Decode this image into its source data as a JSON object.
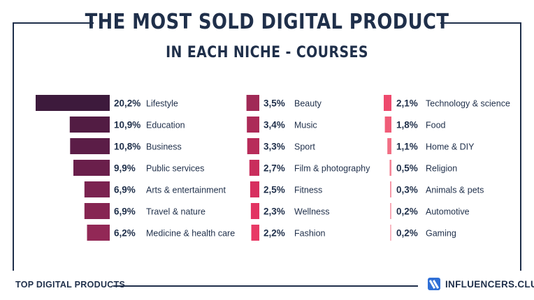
{
  "header": {
    "title_line1": "THE MOST SOLD DIGITAL PRODUCT",
    "title_line2": "IN EACH NICHE - COURSES"
  },
  "footer": {
    "left_label": "TOP DIGITAL PRODUCTS",
    "brand_name": "INFLUENCERS.CLUB"
  },
  "colors": {
    "navy": "#1f2f4a",
    "brand_blue": "#2f6fd6"
  },
  "chart_data": {
    "type": "bar",
    "orientation": "horizontal",
    "title": "THE MOST SOLD DIGITAL PRODUCT IN EACH NICHE - COURSES",
    "unit": "%",
    "columns": [
      {
        "items": [
          {
            "label": "20,2%",
            "value": 20.2,
            "category": "Lifestyle",
            "color": "#3d1a3c"
          },
          {
            "label": "10,9%",
            "value": 10.9,
            "category": "Education",
            "color": "#521c43"
          },
          {
            "label": "10,8%",
            "value": 10.8,
            "category": "Business",
            "color": "#5b1d47"
          },
          {
            "label": "9,9%",
            "value": 9.9,
            "category": "Public services",
            "color": "#6a1f4b"
          },
          {
            "label": "6,9%",
            "value": 6.9,
            "category": "Arts & entertainment",
            "color": "#7b2350"
          },
          {
            "label": "6,9%",
            "value": 6.9,
            "category": "Travel & nature",
            "color": "#862552"
          },
          {
            "label": "6,2%",
            "value": 6.2,
            "category": "Medicine & health care",
            "color": "#922856"
          }
        ]
      },
      {
        "items": [
          {
            "label": "3,5%",
            "value": 3.5,
            "category": "Beauty",
            "color": "#a02a56"
          },
          {
            "label": "3,4%",
            "value": 3.4,
            "category": "Music",
            "color": "#ac2b58"
          },
          {
            "label": "3,3%",
            "value": 3.3,
            "category": "Sport",
            "color": "#b82c5a"
          },
          {
            "label": "2,7%",
            "value": 2.7,
            "category": "Film & photography",
            "color": "#c92e5c"
          },
          {
            "label": "2,5%",
            "value": 2.5,
            "category": "Fitness",
            "color": "#d7305f"
          },
          {
            "label": "2,3%",
            "value": 2.3,
            "category": "Wellness",
            "color": "#e23462"
          },
          {
            "label": "2,2%",
            "value": 2.2,
            "category": "Fashion",
            "color": "#e83a66"
          }
        ]
      },
      {
        "items": [
          {
            "label": "2,1%",
            "value": 2.1,
            "category": "Technology & science",
            "color": "#ee4a6d"
          },
          {
            "label": "1,8%",
            "value": 1.8,
            "category": "Food",
            "color": "#f05c78"
          },
          {
            "label": "1,1%",
            "value": 1.1,
            "category": "Home & DIY",
            "color": "#f26e84"
          },
          {
            "label": "0,5%",
            "value": 0.5,
            "category": "Religion",
            "color": "#f48496"
          },
          {
            "label": "0,3%",
            "value": 0.3,
            "category": "Animals & pets",
            "color": "#f599a8"
          },
          {
            "label": "0,2%",
            "value": 0.2,
            "category": "Automotive",
            "color": "#f7aab6"
          },
          {
            "label": "0,2%",
            "value": 0.2,
            "category": "Gaming",
            "color": "#f8b8c2"
          }
        ]
      }
    ]
  }
}
